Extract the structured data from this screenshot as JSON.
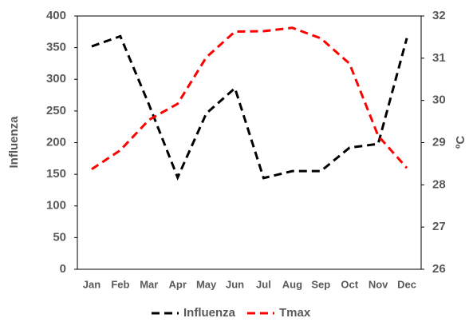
{
  "chart_data": {
    "type": "line",
    "categories": [
      "Jan",
      "Feb",
      "Mar",
      "Apr",
      "May",
      "Jun",
      "Jul",
      "Aug",
      "Sep",
      "Oct",
      "Nov",
      "Dec"
    ],
    "series": [
      {
        "name": "Influenza",
        "color": "#000000",
        "axis": "y",
        "values": [
          352,
          368,
          260,
          145,
          246,
          286,
          144,
          155,
          155,
          192,
          198,
          365
        ]
      },
      {
        "name": "Tmax",
        "color": "#ff0000",
        "axis": "y2",
        "values": [
          28.37,
          28.82,
          29.54,
          29.92,
          31.02,
          31.63,
          31.64,
          31.72,
          31.47,
          30.87,
          29.16,
          28.4
        ]
      }
    ],
    "ylabel": "Influenza",
    "y2label": "ºC",
    "ylim": [
      0,
      400
    ],
    "yticks": [
      0,
      50,
      100,
      150,
      200,
      250,
      300,
      350,
      400
    ],
    "y2lim": [
      26,
      32
    ],
    "y2ticks": [
      26,
      27,
      28,
      29,
      30,
      31,
      32
    ],
    "grid": false,
    "legend": "bottom"
  }
}
